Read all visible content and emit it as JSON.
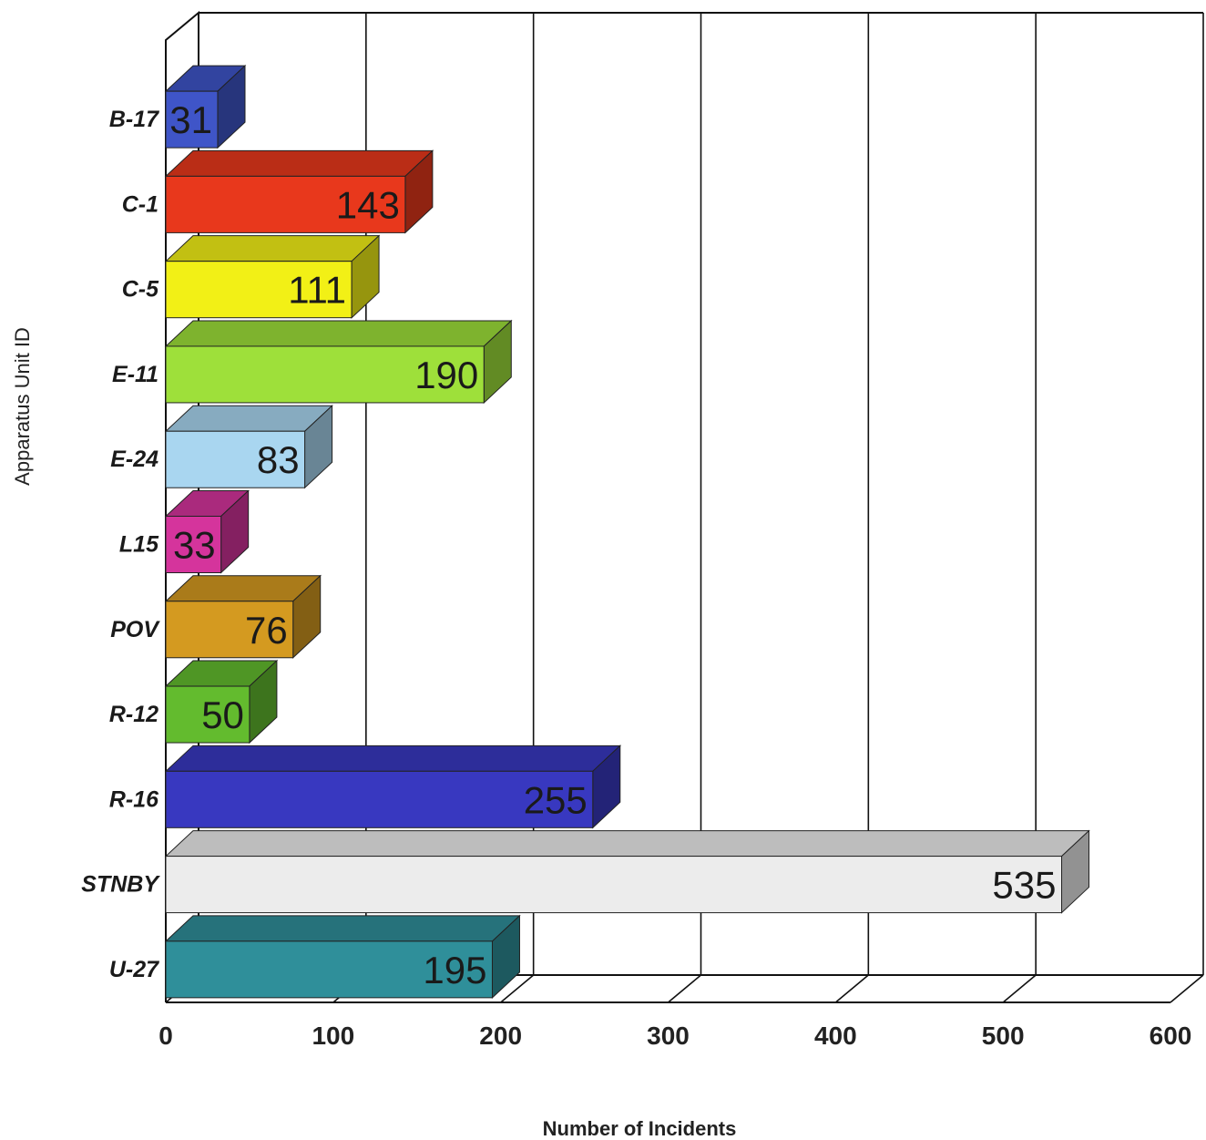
{
  "chart_data": {
    "type": "bar",
    "orientation": "horizontal",
    "three_d": true,
    "title": "",
    "xlabel": "Number of Incidents",
    "ylabel": "Apparatus Unit ID",
    "categories": [
      "B-17",
      "C-1",
      "C-5",
      "E-11",
      "E-24",
      "L15",
      "POV",
      "R-12",
      "R-16",
      "STNBY",
      "U-27"
    ],
    "values": [
      31,
      143,
      111,
      190,
      83,
      33,
      76,
      50,
      255,
      535,
      195
    ],
    "colors": [
      "#3f55c8",
      "#e8381c",
      "#f2f016",
      "#9ee03a",
      "#a9d6f0",
      "#d5349c",
      "#d49a20",
      "#63bb2e",
      "#3838c0",
      "#ececec",
      "#2f8f9a"
    ],
    "data_labels": [
      "31",
      "143",
      "111",
      "190",
      "83",
      "33",
      "76",
      "50",
      "255",
      "535",
      "195"
    ],
    "xlim": [
      0,
      600
    ],
    "xticks": [
      0,
      100,
      200,
      300,
      400,
      500,
      600
    ],
    "grid": true
  }
}
